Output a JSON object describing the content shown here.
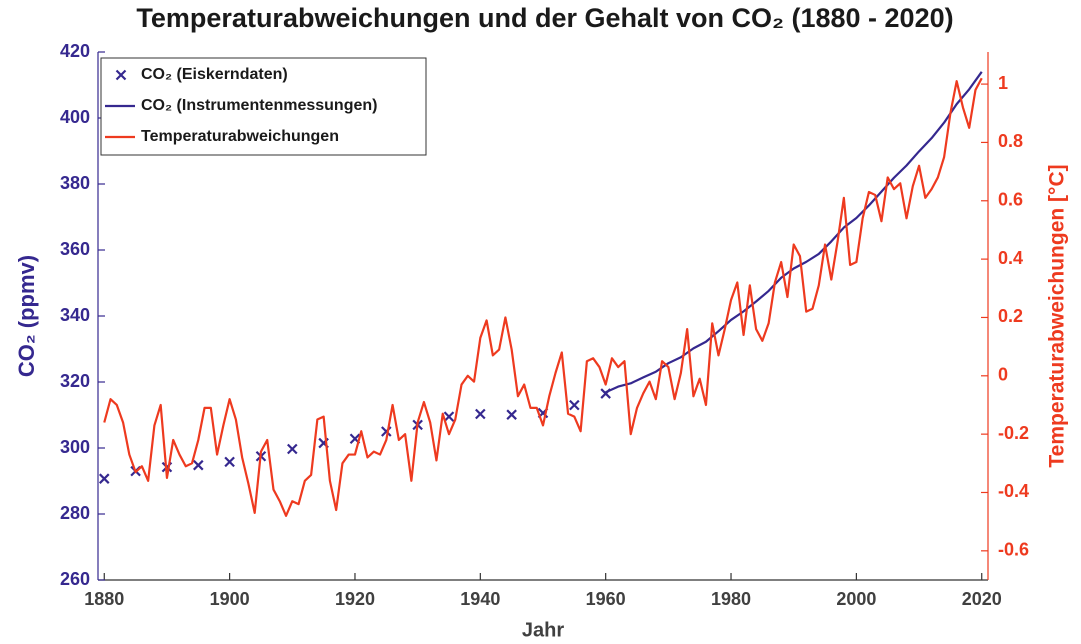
{
  "chart_data": {
    "type": "line",
    "title": "Temperaturabweichungen und der Gehalt von CO₂ (1880 - 2020)",
    "x_label": "Jahr",
    "y_label": "CO₂ (ppmv)",
    "y2_label": "Temperaturabweichungen [°C]",
    "xlim": [
      1879,
      2021
    ],
    "xticks": [
      1880,
      1900,
      1920,
      1940,
      1960,
      1980,
      2000,
      2020
    ],
    "ylim": [
      260,
      420
    ],
    "yticks": [
      260,
      280,
      300,
      320,
      340,
      360,
      380,
      400,
      420
    ],
    "y2lim": [
      -0.7,
      1.11
    ],
    "y2ticks": [
      -0.6,
      -0.4,
      -0.2,
      0,
      0.2,
      0.4,
      0.6,
      0.8,
      1
    ],
    "grid": false,
    "legend": "upper left",
    "series": [
      {
        "name": "CO₂ (Eiskerndaten)",
        "type": "scatter",
        "color": "#35288f",
        "x": [
          1880,
          1885,
          1890,
          1895,
          1900,
          1905,
          1910,
          1915,
          1920,
          1925,
          1930,
          1935,
          1940,
          1945,
          1950,
          1955,
          1960
        ],
        "values": [
          290.7,
          293,
          294.2,
          294.8,
          295.8,
          297.5,
          299.7,
          301.5,
          302.8,
          305,
          307,
          309.5,
          310.3,
          310.1,
          310.6,
          313,
          316.5
        ]
      },
      {
        "name": "CO₂ (Instrumentenmessungen)",
        "type": "line",
        "color": "#35288f",
        "x": [
          1960,
          1962,
          1964,
          1966,
          1968,
          1970,
          1972,
          1974,
          1976,
          1978,
          1980,
          1982,
          1984,
          1986,
          1988,
          1990,
          1992,
          1994,
          1996,
          1998,
          2000,
          2002,
          2004,
          2006,
          2008,
          2010,
          2012,
          2014,
          2016,
          2018,
          2020
        ],
        "values": [
          316.9,
          318.6,
          319.6,
          321.4,
          323.1,
          325.7,
          327.5,
          330.2,
          332.2,
          335.4,
          338.8,
          341.4,
          344.4,
          347.6,
          351.6,
          354.4,
          356.4,
          358.8,
          362.6,
          366.8,
          369.7,
          373.5,
          377.7,
          381.9,
          385.6,
          389.9,
          393.9,
          398.6,
          404.2,
          408.7,
          414
        ]
      },
      {
        "name": "Temperaturabweichungen",
        "type": "line",
        "axis": "y2",
        "color": "#ee3a1f",
        "x": [
          1880,
          1881,
          1882,
          1883,
          1884,
          1885,
          1886,
          1887,
          1888,
          1889,
          1890,
          1891,
          1892,
          1893,
          1894,
          1895,
          1896,
          1897,
          1898,
          1899,
          1900,
          1901,
          1902,
          1903,
          1904,
          1905,
          1906,
          1907,
          1908,
          1909,
          1910,
          1911,
          1912,
          1913,
          1914,
          1915,
          1916,
          1917,
          1918,
          1919,
          1920,
          1921,
          1922,
          1923,
          1924,
          1925,
          1926,
          1927,
          1928,
          1929,
          1930,
          1931,
          1932,
          1933,
          1934,
          1935,
          1936,
          1937,
          1938,
          1939,
          1940,
          1941,
          1942,
          1943,
          1944,
          1945,
          1946,
          1947,
          1948,
          1949,
          1950,
          1951,
          1952,
          1953,
          1954,
          1955,
          1956,
          1957,
          1958,
          1959,
          1960,
          1961,
          1962,
          1963,
          1964,
          1965,
          1966,
          1967,
          1968,
          1969,
          1970,
          1971,
          1972,
          1973,
          1974,
          1975,
          1976,
          1977,
          1978,
          1979,
          1980,
          1981,
          1982,
          1983,
          1984,
          1985,
          1986,
          1987,
          1988,
          1989,
          1990,
          1991,
          1992,
          1993,
          1994,
          1995,
          1996,
          1997,
          1998,
          1999,
          2000,
          2001,
          2002,
          2003,
          2004,
          2005,
          2006,
          2007,
          2008,
          2009,
          2010,
          2011,
          2012,
          2013,
          2014,
          2015,
          2016,
          2017,
          2018,
          2019,
          2020
        ],
        "values": [
          -0.16,
          -0.08,
          -0.1,
          -0.16,
          -0.27,
          -0.33,
          -0.31,
          -0.36,
          -0.17,
          -0.1,
          -0.35,
          -0.22,
          -0.27,
          -0.31,
          -0.3,
          -0.22,
          -0.11,
          -0.11,
          -0.27,
          -0.17,
          -0.08,
          -0.15,
          -0.28,
          -0.37,
          -0.47,
          -0.26,
          -0.22,
          -0.39,
          -0.43,
          -0.48,
          -0.43,
          -0.44,
          -0.36,
          -0.34,
          -0.15,
          -0.14,
          -0.36,
          -0.46,
          -0.3,
          -0.27,
          -0.27,
          -0.19,
          -0.28,
          -0.26,
          -0.27,
          -0.22,
          -0.1,
          -0.22,
          -0.2,
          -0.36,
          -0.16,
          -0.09,
          -0.16,
          -0.29,
          -0.13,
          -0.2,
          -0.15,
          -0.03,
          0,
          -0.02,
          0.13,
          0.19,
          0.07,
          0.09,
          0.2,
          0.09,
          -0.07,
          -0.03,
          -0.11,
          -0.11,
          -0.17,
          -0.07,
          0.01,
          0.08,
          -0.13,
          -0.14,
          -0.19,
          0.05,
          0.06,
          0.03,
          -0.03,
          0.06,
          0.03,
          0.05,
          -0.2,
          -0.11,
          -0.06,
          -0.02,
          -0.08,
          0.05,
          0.03,
          -0.08,
          0.01,
          0.16,
          -0.07,
          -0.01,
          -0.1,
          0.18,
          0.07,
          0.16,
          0.26,
          0.32,
          0.14,
          0.31,
          0.16,
          0.12,
          0.18,
          0.32,
          0.39,
          0.27,
          0.45,
          0.41,
          0.22,
          0.23,
          0.31,
          0.45,
          0.33,
          0.46,
          0.61,
          0.38,
          0.39,
          0.54,
          0.63,
          0.62,
          0.53,
          0.68,
          0.64,
          0.66,
          0.54,
          0.65,
          0.72,
          0.61,
          0.64,
          0.68,
          0.75,
          0.9,
          1.01,
          0.92,
          0.85,
          0.98,
          1.02
        ]
      }
    ]
  }
}
